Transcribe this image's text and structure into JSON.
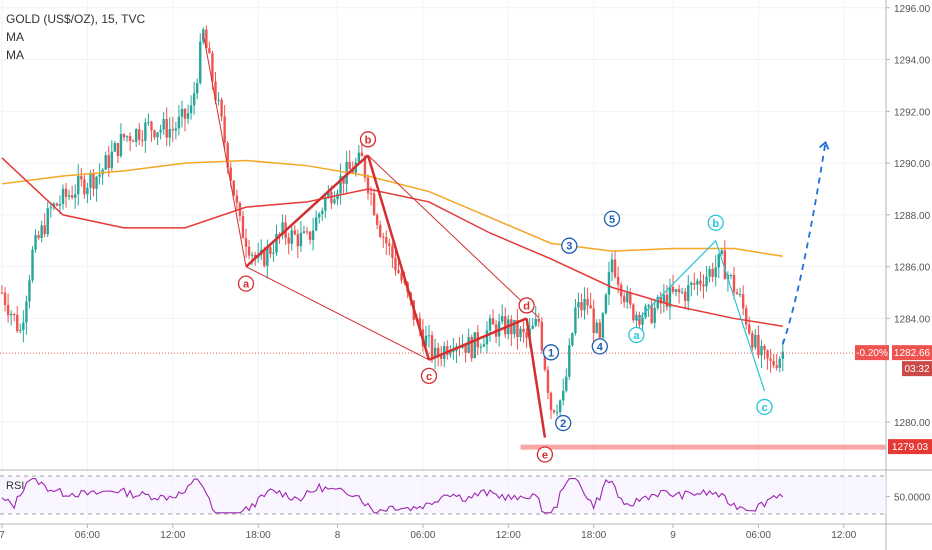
{
  "legend": {
    "symbol_line": "GOLD (US$/OZ), 15, TVC",
    "ma1": "MA",
    "ma2": "MA"
  },
  "rsi_label": "RSI",
  "price_axis": {
    "ticks": [
      "1296.00",
      "1294.00",
      "1292.00",
      "1290.00",
      "1288.00",
      "1286.00",
      "1284.00",
      "1280.00"
    ],
    "current_change": "-0.20%",
    "current_price": "1282.66",
    "countdown": "03:32",
    "support_price": "1279.03",
    "rsi_tick": "50.0000"
  },
  "time_axis": {
    "ticks": [
      {
        "label": "7"
      },
      {
        "label": "06:00"
      },
      {
        "label": "12:00"
      },
      {
        "label": "18:00"
      },
      {
        "label": "8"
      },
      {
        "label": "06:00"
      },
      {
        "label": "12:00"
      },
      {
        "label": "18:00"
      },
      {
        "label": "9"
      },
      {
        "label": "06:00"
      },
      {
        "label": "12:00"
      }
    ]
  },
  "wave_labels": {
    "red": [
      "a",
      "b",
      "c",
      "d",
      "e"
    ],
    "blue": [
      "1",
      "2",
      "3",
      "4",
      "5"
    ],
    "cyan": [
      "a",
      "b",
      "c"
    ]
  },
  "colors": {
    "up_candle": "#26a69a",
    "down_candle": "#ef5350",
    "ma_red": "#e53935",
    "ma_orange": "#f5a623",
    "wave_red": "#d32f2f",
    "wave_blue": "#1e5fb4",
    "wave_cyan": "#26c6da",
    "projection": "#1e6fd9",
    "rsi": "#9c27b0",
    "support": "#f48a8a"
  },
  "chart_data": {
    "type": "candlestick",
    "title": "GOLD (US$/OZ), 15, TVC",
    "ylim": [
      1278.3,
      1296.3
    ],
    "current_price": 1282.66,
    "support_level": 1279.03,
    "price_path": [
      {
        "t": 0,
        "p": 1285.0
      },
      {
        "t": 3,
        "p": 1283.5
      },
      {
        "t": 5,
        "p": 1286.5
      },
      {
        "t": 8,
        "p": 1288.2
      },
      {
        "t": 12,
        "p": 1289.0
      },
      {
        "t": 16,
        "p": 1289.6
      },
      {
        "t": 20,
        "p": 1291.0
      },
      {
        "t": 24,
        "p": 1291.4
      },
      {
        "t": 28,
        "p": 1291.3
      },
      {
        "t": 31,
        "p": 1292.0
      },
      {
        "t": 33,
        "p": 1295.0
      },
      {
        "t": 36,
        "p": 1291.5
      },
      {
        "t": 39,
        "p": 1287.6
      },
      {
        "t": 42,
        "p": 1286.1
      },
      {
        "t": 46,
        "p": 1287.3
      },
      {
        "t": 50,
        "p": 1287.0
      },
      {
        "t": 53,
        "p": 1288.6
      },
      {
        "t": 56,
        "p": 1289.5
      },
      {
        "t": 59,
        "p": 1290.1
      },
      {
        "t": 62,
        "p": 1287.5
      },
      {
        "t": 65,
        "p": 1285.8
      },
      {
        "t": 68,
        "p": 1283.8
      },
      {
        "t": 71,
        "p": 1282.5
      },
      {
        "t": 74,
        "p": 1283.2
      },
      {
        "t": 77,
        "p": 1282.9
      },
      {
        "t": 80,
        "p": 1283.6
      },
      {
        "t": 83,
        "p": 1283.7
      },
      {
        "t": 86,
        "p": 1283.2
      },
      {
        "t": 88,
        "p": 1283.9
      },
      {
        "t": 90,
        "p": 1280.6
      },
      {
        "t": 92,
        "p": 1280.9
      },
      {
        "t": 94,
        "p": 1284.3
      },
      {
        "t": 96,
        "p": 1284.6
      },
      {
        "t": 98,
        "p": 1283.0
      },
      {
        "t": 100,
        "p": 1286.3
      },
      {
        "t": 103,
        "p": 1284.3
      },
      {
        "t": 106,
        "p": 1284.1
      },
      {
        "t": 109,
        "p": 1284.8
      },
      {
        "t": 112,
        "p": 1285.0
      },
      {
        "t": 115,
        "p": 1285.6
      },
      {
        "t": 118,
        "p": 1286.2
      },
      {
        "t": 121,
        "p": 1284.7
      },
      {
        "t": 124,
        "p": 1282.6
      },
      {
        "t": 126,
        "p": 1282.2
      },
      {
        "t": 128,
        "p": 1282.7
      }
    ],
    "ma_red": [
      {
        "t": 0,
        "p": 1290.2
      },
      {
        "t": 10,
        "p": 1288.0
      },
      {
        "t": 20,
        "p": 1287.5
      },
      {
        "t": 30,
        "p": 1287.5
      },
      {
        "t": 40,
        "p": 1288.3
      },
      {
        "t": 50,
        "p": 1288.5
      },
      {
        "t": 60,
        "p": 1289.0
      },
      {
        "t": 70,
        "p": 1288.5
      },
      {
        "t": 80,
        "p": 1287.3
      },
      {
        "t": 90,
        "p": 1286.3
      },
      {
        "t": 100,
        "p": 1285.2
      },
      {
        "t": 110,
        "p": 1284.5
      },
      {
        "t": 120,
        "p": 1284.0
      },
      {
        "t": 128,
        "p": 1283.7
      }
    ],
    "ma_orange": [
      {
        "t": 0,
        "p": 1289.2
      },
      {
        "t": 10,
        "p": 1289.5
      },
      {
        "t": 20,
        "p": 1289.7
      },
      {
        "t": 30,
        "p": 1290.0
      },
      {
        "t": 40,
        "p": 1290.1
      },
      {
        "t": 50,
        "p": 1289.9
      },
      {
        "t": 60,
        "p": 1289.5
      },
      {
        "t": 70,
        "p": 1288.9
      },
      {
        "t": 80,
        "p": 1287.9
      },
      {
        "t": 90,
        "p": 1286.9
      },
      {
        "t": 100,
        "p": 1286.6
      },
      {
        "t": 110,
        "p": 1286.7
      },
      {
        "t": 120,
        "p": 1286.7
      },
      {
        "t": 128,
        "p": 1286.4
      }
    ],
    "waves": {
      "red": [
        {
          "label": "a",
          "t": 40,
          "p": 1286.0
        },
        {
          "label": "b",
          "t": 60,
          "p": 1290.3
        },
        {
          "label": "c",
          "t": 70,
          "p": 1282.4
        },
        {
          "label": "d",
          "t": 86,
          "p": 1284.0
        },
        {
          "label": "e",
          "t": 89,
          "p": 1279.4
        }
      ],
      "blue": [
        {
          "label": "1",
          "t": 90,
          "p": 1283.0
        },
        {
          "label": "2",
          "t": 92,
          "p": 1280.5
        },
        {
          "label": "3",
          "t": 93,
          "p": 1286.5
        },
        {
          "label": "4",
          "t": 98,
          "p": 1283.5
        },
        {
          "label": "5",
          "t": 100,
          "p": 1287.0
        }
      ],
      "cyan": [
        {
          "label": "a",
          "t": 104,
          "p": 1283.9
        },
        {
          "label": "b",
          "t": 117,
          "p": 1287.0
        },
        {
          "label": "c",
          "t": 125,
          "p": 1281.2
        }
      ]
    },
    "projection": [
      {
        "t": 128,
        "p": 1283.0
      },
      {
        "t": 135,
        "p": 1290.8
      }
    ],
    "rsi": {
      "label": "RSI",
      "reference_level": 50,
      "upper_band": 70,
      "lower_band": 30
    }
  }
}
